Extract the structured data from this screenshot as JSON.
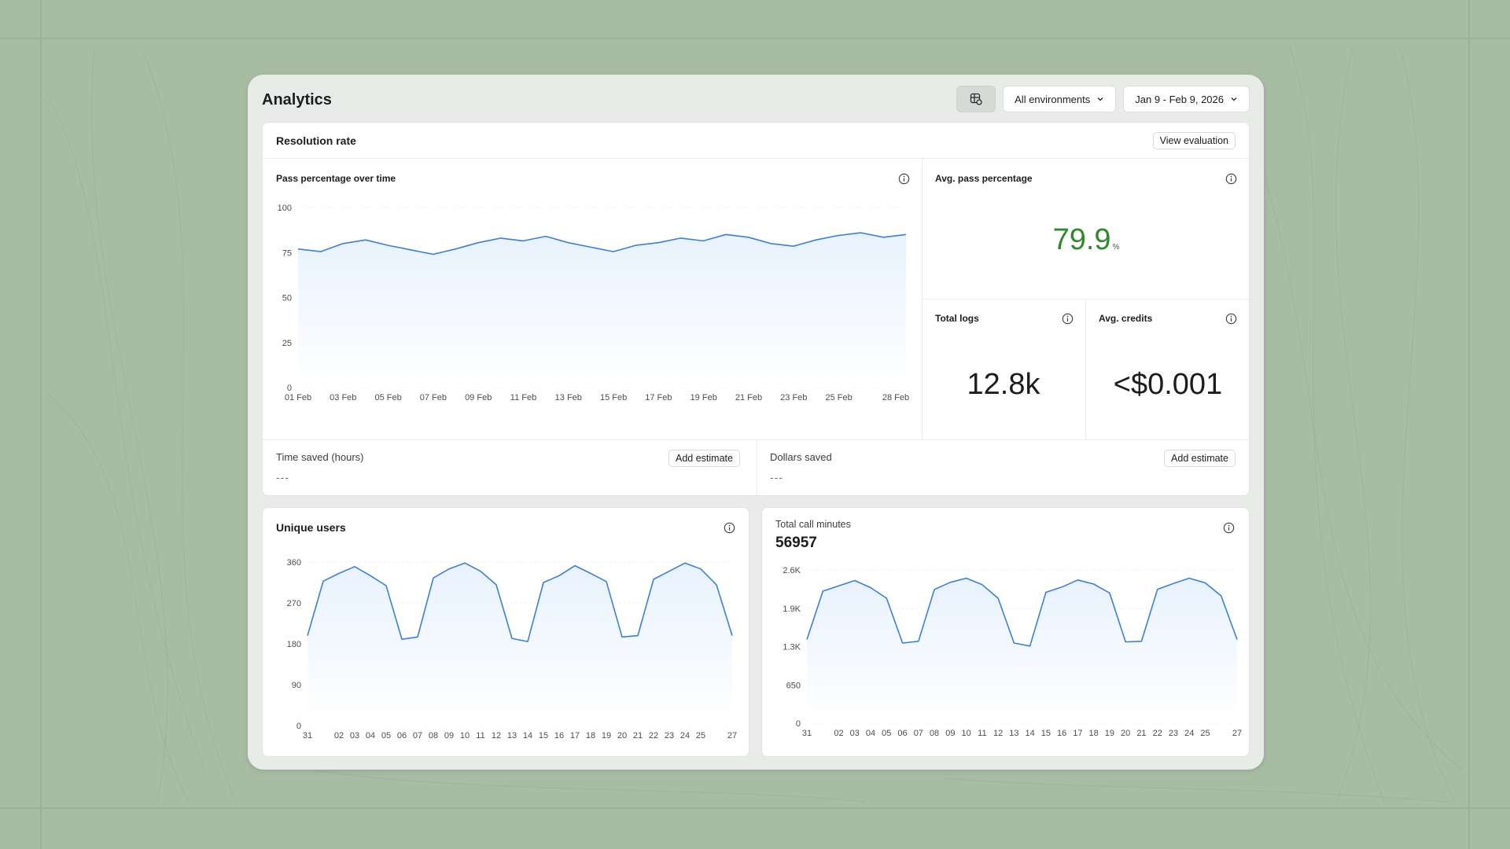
{
  "window": {
    "title": "Analytics"
  },
  "header": {
    "filter_icon": "table-filter-icon",
    "environment_select": "All environments",
    "date_range_select": "Jan 9 - Feb 9, 2026"
  },
  "resolution": {
    "title": "Resolution rate",
    "view_button": "View evaluation",
    "pass_chart": {
      "title": "Pass percentage over time"
    },
    "avg_pass": {
      "label": "Avg. pass percentage",
      "value": "79.9",
      "unit": "%"
    },
    "total_logs": {
      "label": "Total logs",
      "value": "12.8k"
    },
    "avg_credits": {
      "label": "Avg. credits",
      "value": "<$0.001"
    },
    "time_saved": {
      "label": "Time saved (hours)",
      "value": "---",
      "button": "Add estimate"
    },
    "dollars_saved": {
      "label": "Dollars saved",
      "value": "---",
      "button": "Add estimate"
    }
  },
  "unique_users": {
    "title": "Unique users"
  },
  "call_minutes": {
    "label": "Total call minutes",
    "value": "56957"
  },
  "colors": {
    "line": "#3b7fdc",
    "fill": "#e8f2fd",
    "pass_value": "#2f8a2a",
    "background": "#a7bca2"
  },
  "chart_data": [
    {
      "id": "pass",
      "type": "area",
      "title": "Pass percentage over time",
      "ylim": [
        0,
        100
      ],
      "yticks": [
        0,
        25,
        50,
        75,
        100
      ],
      "xtick_labels": [
        "01 Feb",
        "03 Feb",
        "05 Feb",
        "07 Feb",
        "09 Feb",
        "11 Feb",
        "13 Feb",
        "15 Feb",
        "17 Feb",
        "19 Feb",
        "21 Feb",
        "23 Feb",
        "25 Feb",
        "28 Feb"
      ],
      "values": [
        77,
        75.5,
        80,
        82,
        79,
        76.5,
        74,
        77,
        80.5,
        83,
        81.5,
        84,
        80.5,
        78,
        75.5,
        79,
        80.5,
        83,
        81.5,
        85,
        83.5,
        80,
        78.5,
        82,
        84.5,
        86,
        83.5,
        85
      ]
    },
    {
      "id": "users",
      "type": "area",
      "title": "Unique users",
      "ylim": [
        0,
        360
      ],
      "yticks": [
        0,
        90,
        180,
        270,
        360
      ],
      "xtick_labels": [
        "31",
        "",
        "02",
        "03",
        "04",
        "05",
        "06",
        "07",
        "08",
        "09",
        "10",
        "11",
        "12",
        "13",
        "14",
        "15",
        "16",
        "17",
        "18",
        "19",
        "20",
        "21",
        "22",
        "23",
        "24",
        "25",
        "",
        "27"
      ],
      "values": [
        198,
        318,
        335,
        350,
        330,
        308,
        190,
        195,
        325,
        345,
        358,
        340,
        310,
        192,
        185,
        315,
        330,
        352,
        335,
        317,
        195,
        198,
        322,
        340,
        358,
        345,
        310,
        198
      ]
    },
    {
      "id": "calls",
      "type": "area",
      "title": "Total call minutes",
      "ylim": [
        0,
        2600
      ],
      "yticks": [
        0,
        650,
        1300,
        1950,
        2600
      ],
      "ytick_labels": [
        "0",
        "650",
        "1.3K",
        "1.9K",
        "2.6K"
      ],
      "xtick_labels": [
        "31",
        "",
        "02",
        "03",
        "04",
        "05",
        "06",
        "07",
        "08",
        "09",
        "10",
        "11",
        "12",
        "13",
        "14",
        "15",
        "16",
        "17",
        "18",
        "19",
        "20",
        "21",
        "22",
        "23",
        "24",
        "25",
        "",
        "27"
      ],
      "values": [
        1420,
        2240,
        2330,
        2420,
        2300,
        2120,
        1360,
        1390,
        2270,
        2390,
        2460,
        2350,
        2120,
        1360,
        1310,
        2220,
        2310,
        2430,
        2360,
        2210,
        1380,
        1390,
        2270,
        2370,
        2460,
        2380,
        2160,
        1420
      ]
    }
  ]
}
